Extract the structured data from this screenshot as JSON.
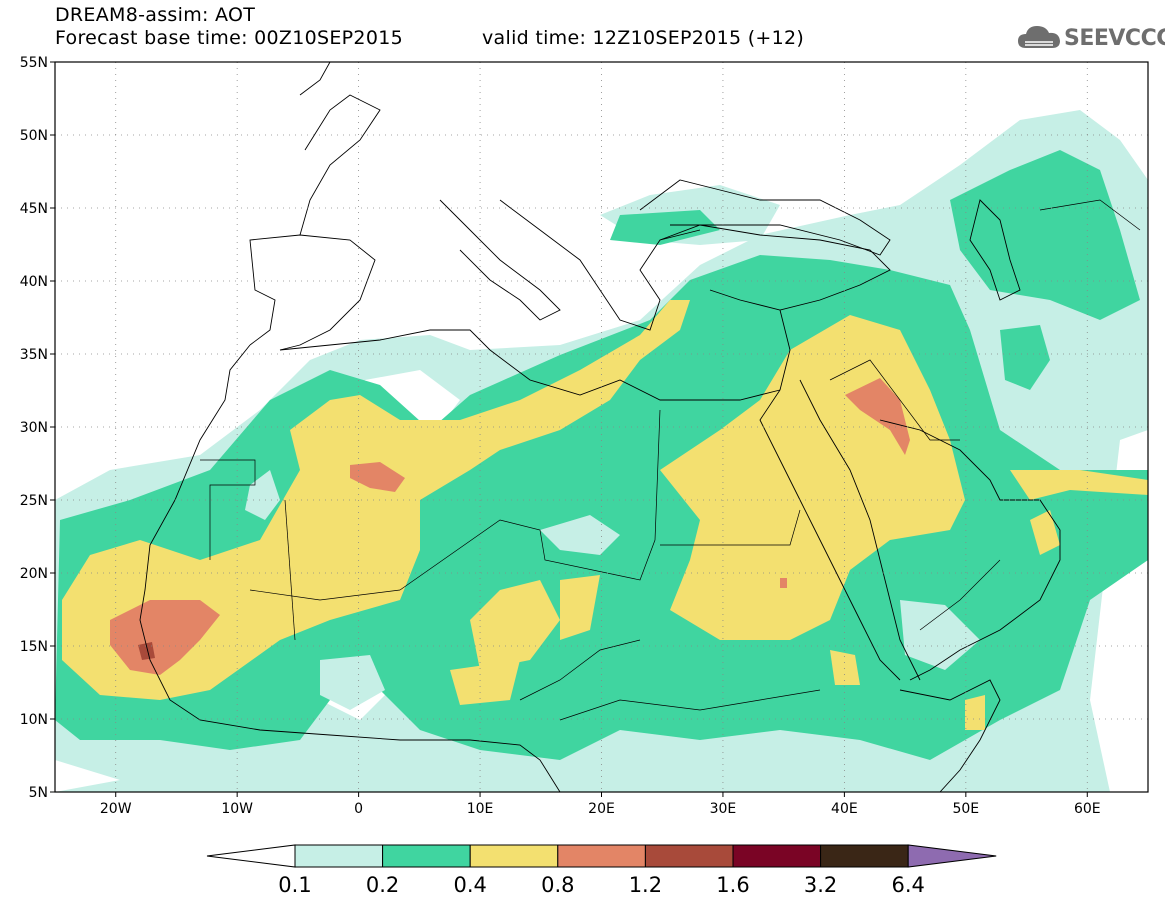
{
  "header": {
    "title": "DREAM8-assim: AOT",
    "base_time": "Forecast base time: 00Z10SEP2015",
    "valid_time": "valid time: 12Z10SEP2015 (+12)",
    "logo_text": "SEEVCCC"
  },
  "map": {
    "extent": {
      "lon": [
        -25,
        65
      ],
      "lat": [
        5,
        55
      ]
    },
    "lat_ticks": [
      {
        "value": 55,
        "label": "55N"
      },
      {
        "value": 50,
        "label": "50N"
      },
      {
        "value": 45,
        "label": "45N"
      },
      {
        "value": 40,
        "label": "40N"
      },
      {
        "value": 35,
        "label": "35N"
      },
      {
        "value": 30,
        "label": "30N"
      },
      {
        "value": 25,
        "label": "25N"
      },
      {
        "value": 20,
        "label": "20N"
      },
      {
        "value": 15,
        "label": "15N"
      },
      {
        "value": 10,
        "label": "10N"
      },
      {
        "value": 5,
        "label": "5N"
      }
    ],
    "lon_ticks": [
      {
        "value": -20,
        "label": "20W"
      },
      {
        "value": -10,
        "label": "10W"
      },
      {
        "value": 0,
        "label": "0"
      },
      {
        "value": 10,
        "label": "10E"
      },
      {
        "value": 20,
        "label": "20E"
      },
      {
        "value": 30,
        "label": "30E"
      },
      {
        "value": 40,
        "label": "40E"
      },
      {
        "value": 50,
        "label": "50E"
      },
      {
        "value": 60,
        "label": "60E"
      }
    ],
    "grid": true
  },
  "legend": {
    "labels": [
      "0.1",
      "0.2",
      "0.4",
      "0.8",
      "1.2",
      "1.6",
      "3.2",
      "6.4"
    ],
    "colors": [
      "#ffffff",
      "#c6efe6",
      "#40d5a0",
      "#f3e070",
      "#e38566",
      "#a84a3a",
      "#7a0425",
      "#3a2616",
      "#8e6bb0"
    ]
  }
}
